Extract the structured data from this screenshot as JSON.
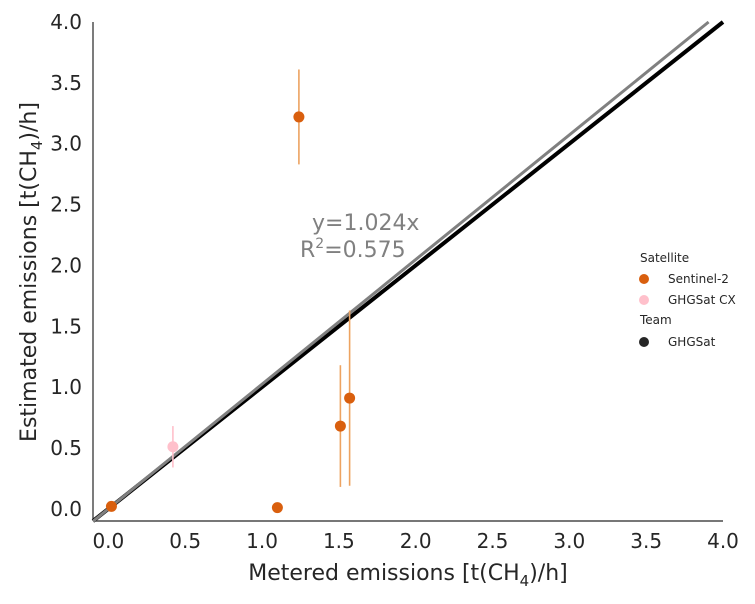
{
  "chart_data": {
    "type": "scatter",
    "xlabel": "Metered emissions [t(CH4)/h]",
    "ylabel": "Estimated emissions [t(CH4)/h]",
    "xlabel_main": "Metered emissions [t(CH",
    "xlabel_sub": "4",
    "xlabel_end": ")/h]",
    "ylabel_main": "Estimated emissions [t(CH",
    "ylabel_sub": "4",
    "ylabel_end": ")/h]",
    "xlim": [
      -0.1,
      4.0
    ],
    "ylim": [
      -0.1,
      4.0
    ],
    "xticks": [
      0.0,
      0.5,
      1.0,
      1.5,
      2.0,
      2.5,
      3.0,
      3.5,
      4.0
    ],
    "yticks": [
      0.0,
      0.5,
      1.0,
      1.5,
      2.0,
      2.5,
      3.0,
      3.5,
      4.0
    ],
    "xtick_labels": [
      "0.0",
      "0.5",
      "1.0",
      "1.5",
      "2.0",
      "2.5",
      "3.0",
      "3.5",
      "4.0"
    ],
    "ytick_labels": [
      "0.0",
      "0.5",
      "1.0",
      "1.5",
      "2.0",
      "2.5",
      "3.0",
      "3.5",
      "4.0"
    ],
    "grid": false,
    "legend_position": "center-right",
    "series": [
      {
        "name": "Sentinel-2",
        "color": "#d95f0e",
        "errcolor": "#eda361",
        "points": [
          {
            "x": 0.02,
            "y": 0.02,
            "yerr": 0.0
          },
          {
            "x": 1.24,
            "y": 3.22,
            "yerr": 0.39
          },
          {
            "x": 1.51,
            "y": 0.68,
            "yerr": 0.5
          },
          {
            "x": 1.57,
            "y": 0.91,
            "yerr": 0.72
          },
          {
            "x": 1.1,
            "y": 0.01,
            "yerr": 0.0
          }
        ]
      },
      {
        "name": "GHGSat CX",
        "color": "#ffc0cb",
        "errcolor": "#ffc0cb",
        "points": [
          {
            "x": 0.42,
            "y": 0.51,
            "yerr": 0.17
          }
        ]
      }
    ],
    "lines": [
      {
        "name": "1:1 line",
        "slope": 1.0,
        "color": "#000000",
        "width": 4
      },
      {
        "name": "fit",
        "slope": 1.024,
        "color": "#808080",
        "width": 3
      }
    ],
    "annotation": {
      "line1": "y=1.024x",
      "line2_pre": "R",
      "line2_sup": "2",
      "line2_post": "=0.575"
    },
    "legend": {
      "title1": "Satellite",
      "items1": [
        {
          "label": "Sentinel-2",
          "color": "#d95f0e"
        },
        {
          "label": "GHGSat CX",
          "color": "#ffc0cb"
        }
      ],
      "title2": "Team",
      "items2": [
        {
          "label": "GHGSat",
          "color": "#262626"
        }
      ]
    }
  }
}
